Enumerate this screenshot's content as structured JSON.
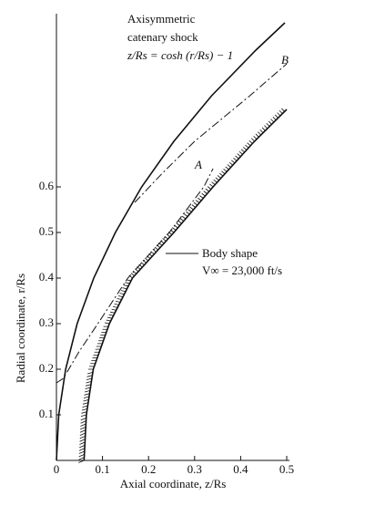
{
  "chart_data": {
    "type": "line",
    "xlabel": "Axial coordinate, z/Rs",
    "ylabel": "Radial coordinate, r/Rs",
    "xlim": [
      0,
      0.5
    ],
    "ylim": [
      0,
      0.98
    ],
    "xticks": [
      0,
      0.1,
      0.2,
      0.3,
      0.4,
      0.5
    ],
    "yticks": [
      0.1,
      0.2,
      0.3,
      0.4,
      0.5,
      0.6
    ],
    "annotations": [
      "Axisymmetric",
      "catenary shock",
      "z/Rs = cosh (r/Rs) − 1",
      "B",
      "A",
      "Body shape",
      "V∞ = 23,000 ft/s"
    ],
    "series": [
      {
        "color": "#111111",
        "style": "solid",
        "x": [
          0,
          0.005,
          0.02,
          0.045,
          0.081,
          0.128,
          0.185,
          0.255,
          0.337,
          0.433,
          0.496
        ],
        "values": [
          0,
          0.1,
          0.2,
          0.3,
          0.4,
          0.5,
          0.6,
          0.7,
          0.8,
          0.9,
          0.96
        ]
      },
      {
        "color": "#111111",
        "style": "dashdot",
        "x": [
          0.17,
          0.23,
          0.3,
          0.36,
          0.42,
          0.5
        ],
        "values": [
          0.566,
          0.63,
          0.7,
          0.75,
          0.8,
          0.87
        ]
      },
      {
        "color": "#111111",
        "style": "dashdot",
        "x": [
          0,
          0.015,
          0.05,
          0.09,
          0.155,
          0.245,
          0.32,
          0.34
        ],
        "values": [
          0.17,
          0.18,
          0.24,
          0.3,
          0.4,
          0.5,
          0.6,
          0.64
        ]
      },
      {
        "color": "#111111",
        "style": "hatched",
        "x": [
          0.06,
          0.065,
          0.08,
          0.115,
          0.165,
          0.255,
          0.34,
          0.43,
          0.5
        ],
        "values": [
          0,
          0.1,
          0.2,
          0.3,
          0.4,
          0.5,
          0.6,
          0.7,
          0.77
        ]
      }
    ]
  }
}
